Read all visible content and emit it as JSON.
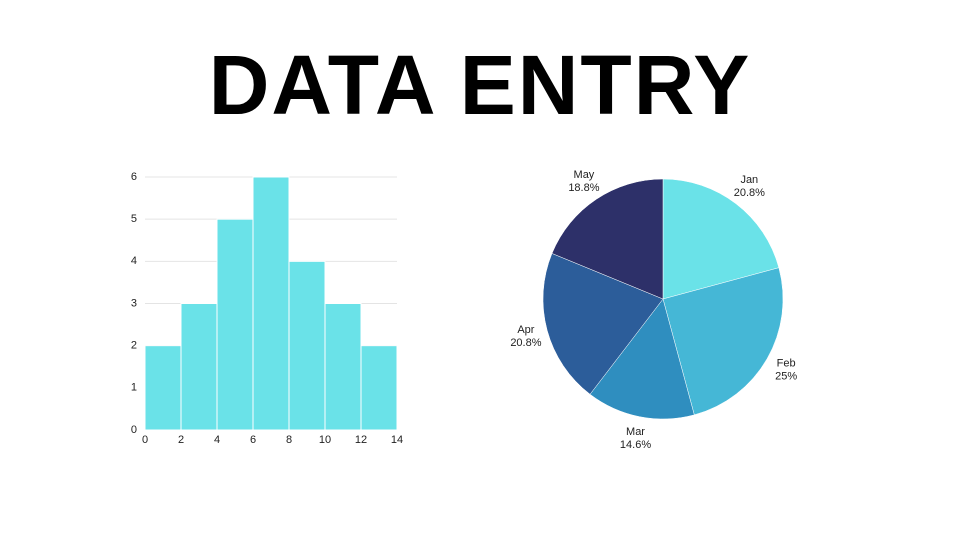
{
  "title": "DATA ENTRY",
  "chart_data": [
    {
      "type": "histogram",
      "bins": [
        0,
        2,
        4,
        6,
        8,
        10,
        12,
        14
      ],
      "values": [
        2,
        3,
        5,
        6,
        4,
        3,
        2
      ],
      "color": "#6ae2e8",
      "xlim": [
        0,
        14
      ],
      "xticks": [
        0,
        2,
        4,
        6,
        8,
        10,
        12,
        14
      ],
      "ylim": [
        0,
        6
      ],
      "yticks": [
        0,
        1,
        2,
        3,
        4,
        5,
        6
      ],
      "grid": true
    },
    {
      "type": "pie",
      "categories": [
        "Jan",
        "Feb",
        "Mar",
        "Apr",
        "May"
      ],
      "values": [
        20.8,
        25,
        14.6,
        20.8,
        18.8
      ],
      "value_labels": [
        "20.8%",
        "25%",
        "14.6%",
        "20.8%",
        "18.8%"
      ],
      "colors": [
        "#6ae2e8",
        "#45b7d6",
        "#2f8ebf",
        "#2c5d9a",
        "#2d3069"
      ]
    }
  ]
}
